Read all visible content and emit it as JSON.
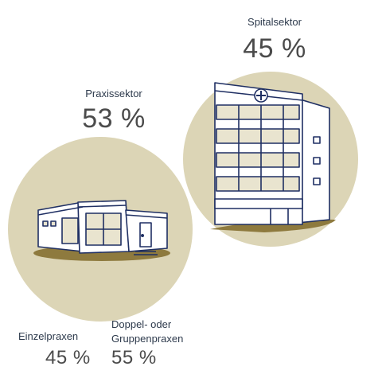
{
  "colors": {
    "circle_fill": "#dcd5b6",
    "building_stroke": "#1f2f63",
    "shadow": "#8e7a3e",
    "text": "#2d3a4c"
  },
  "spitalsektor": {
    "label": "Spitalsektor",
    "percent": "45 %"
  },
  "praxissektor": {
    "label": "Praxissektor",
    "percent": "53 %"
  },
  "einzelpraxen": {
    "label": "Einzelpraxen",
    "percent": "45 %"
  },
  "gruppenpraxen": {
    "label_line1": "Doppel- oder",
    "label_line2": "Gruppenpraxen",
    "percent": "55 %"
  },
  "icons": [
    "hospital-building-icon",
    "medical-cross-icon",
    "practice-building-icon"
  ]
}
